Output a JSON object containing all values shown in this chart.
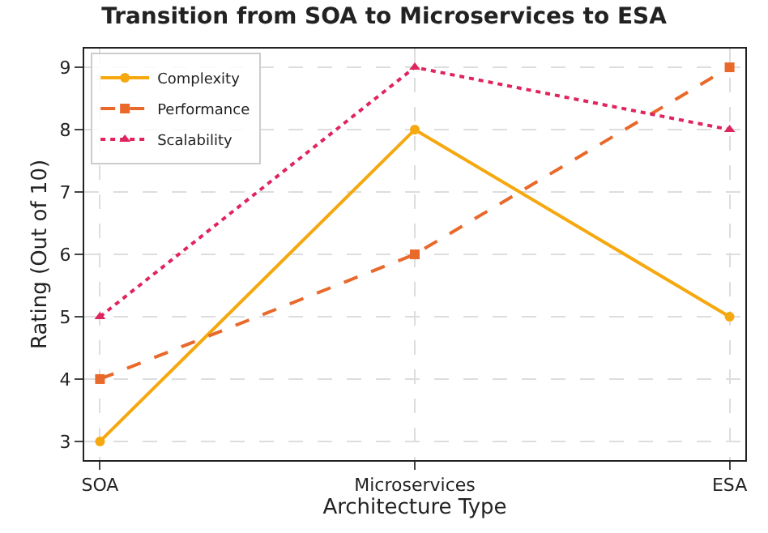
{
  "chart_data": {
    "type": "line",
    "title": "Transition from SOA to Microservices to ESA",
    "xlabel": "Architecture Type",
    "ylabel": "Rating (Out of 10)",
    "categories": [
      "SOA",
      "Microservices",
      "ESA"
    ],
    "series": [
      {
        "name": "Complexity",
        "color": "#f5a80f",
        "values": [
          3,
          8,
          5
        ],
        "marker": "circle",
        "line_style": "solid"
      },
      {
        "name": "Performance",
        "color": "#e8692a",
        "values": [
          4,
          6,
          9
        ],
        "marker": "square",
        "line_style": "dashed"
      },
      {
        "name": "Scalability",
        "color": "#e0245e",
        "values": [
          5,
          9,
          8
        ],
        "marker": "triangle",
        "line_style": "dotted"
      }
    ],
    "ylim": [
      2.7,
      9.3
    ],
    "yticks": [
      3,
      4,
      5,
      6,
      7,
      8,
      9
    ],
    "grid": true,
    "legend": "top left"
  }
}
